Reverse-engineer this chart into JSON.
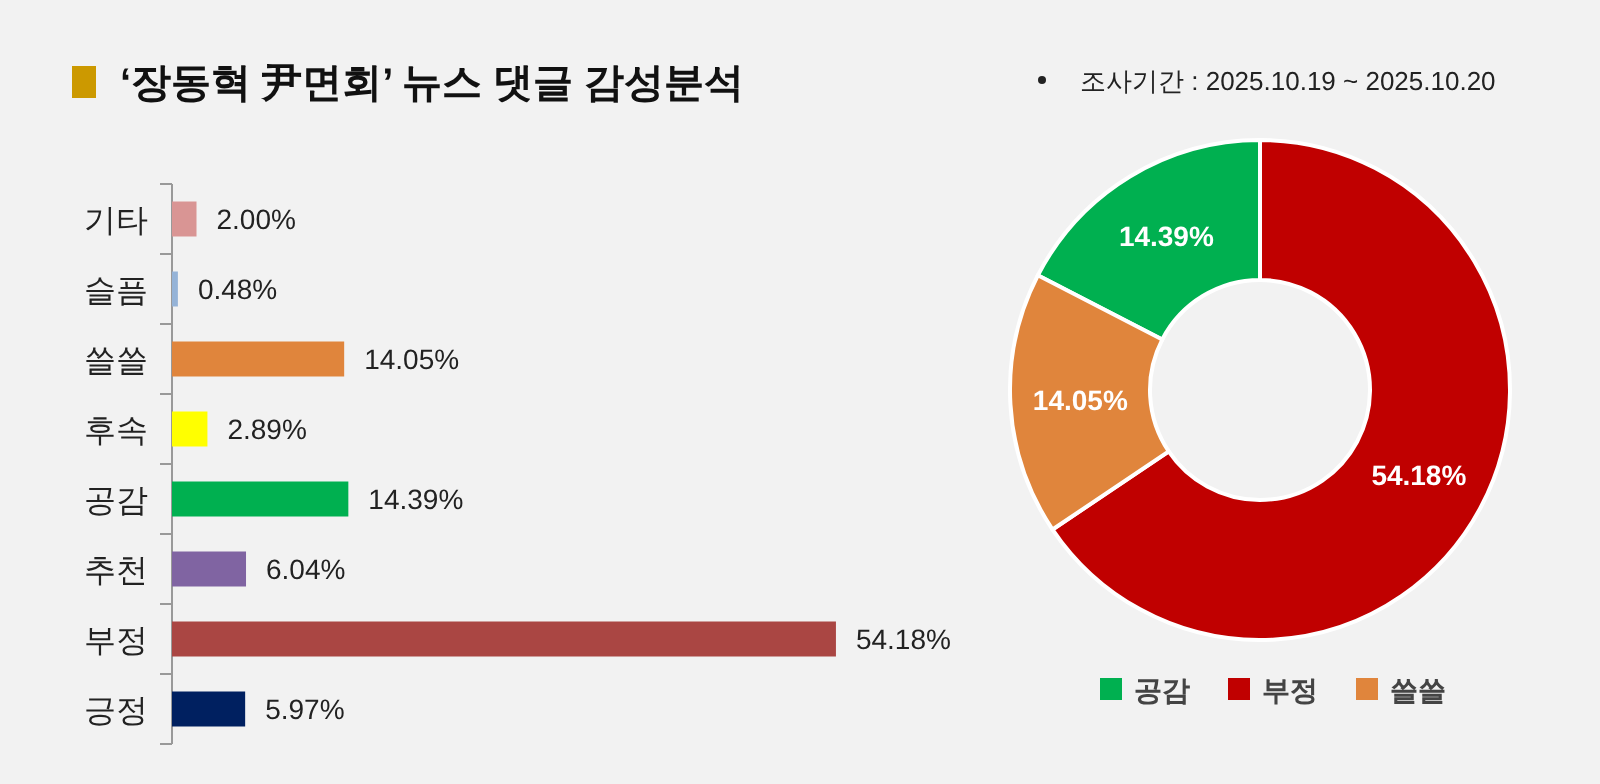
{
  "chart_data": [
    {
      "type": "bar",
      "title": "‘장동혁 尹면회’ 뉴스 댓글 감성분석",
      "orientation": "horizontal",
      "categories": [
        "기타",
        "슬픔",
        "쓸쓸",
        "후속",
        "공감",
        "추천",
        "부정",
        "긍정"
      ],
      "values": [
        2.0,
        0.48,
        14.05,
        2.89,
        14.39,
        6.04,
        54.18,
        5.97
      ],
      "colors": [
        "#d99594",
        "#95b3d7",
        "#e0853c",
        "#ffff00",
        "#00b050",
        "#8064a2",
        "#aa4643",
        "#002060"
      ],
      "value_labels": [
        "2.00%",
        "0.48%",
        "14.05%",
        "2.89%",
        "14.39%",
        "6.04%",
        "54.18%",
        "5.97%"
      ],
      "tick_labels": "y"
    },
    {
      "type": "donut",
      "annotations": [
        "조사기간 : 2025.10.19 ~ 2025.10.20"
      ],
      "categories": [
        "공감",
        "부정",
        "쓸쓸"
      ],
      "values": [
        14.39,
        54.18,
        14.05
      ],
      "colors": [
        "#00b050",
        "#c00000",
        "#e0853c"
      ],
      "value_labels": [
        "14.39%",
        "54.18%",
        "14.05%"
      ],
      "legend": "bottom"
    }
  ]
}
